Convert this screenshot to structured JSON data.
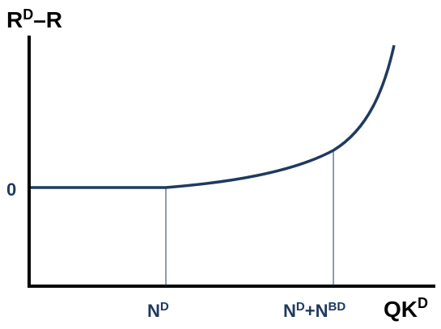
{
  "diagram": {
    "y_axis_label": {
      "base": "R",
      "sup": "D",
      "rest": "–R"
    },
    "x_axis_label": {
      "base": "QK",
      "sup": "D"
    },
    "zero_label": "0",
    "tick_n_d": {
      "base": "N",
      "sup": "D"
    },
    "tick_n_d_plus": {
      "base": "N",
      "sup": "D",
      "mid": "+N",
      "sup2": "BD"
    },
    "colors": {
      "axes": "#000000",
      "curve": "#1f3a60",
      "guide_lines": "#1f3a60",
      "tick_labels": "#1f3a60",
      "axis_labels": "#000000"
    }
  }
}
